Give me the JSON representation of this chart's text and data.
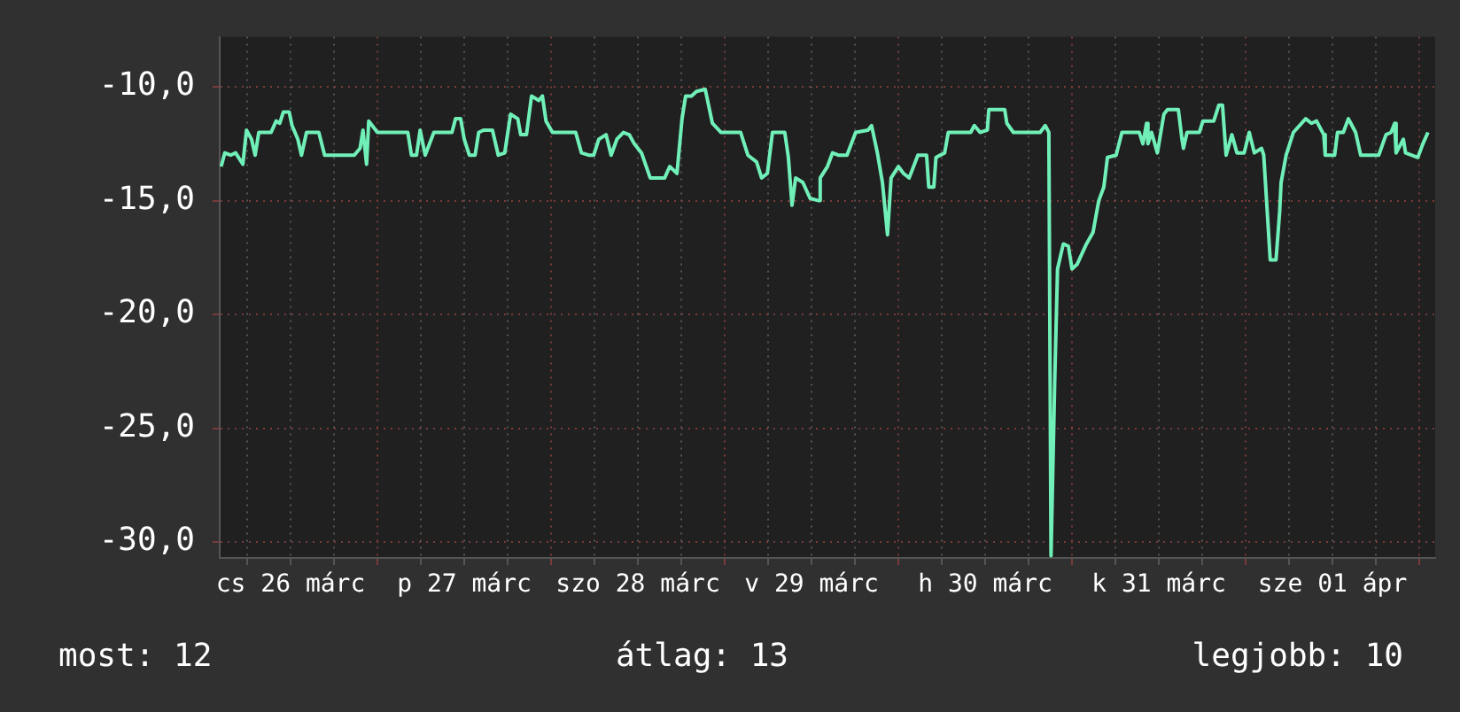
{
  "chart_data": {
    "type": "line",
    "x": [
      "--03-26T02:24",
      "--03-26T02:54",
      "--03-26T03:42",
      "--03-26T04:24",
      "--03-26T05:24",
      "--03-26T05:54",
      "--03-26T06:36",
      "--03-26T07:06",
      "--03-26T07:36",
      "--03-26T09:18",
      "--03-26T10:00",
      "--03-26T10:30",
      "--03-26T11:00",
      "--03-26T11:48",
      "--03-26T12:12",
      "--03-26T13:00",
      "--03-26T13:30",
      "--03-26T14:12",
      "--03-26T15:54",
      "--03-26T16:42",
      "--03-26T20:48",
      "--03-26T21:36",
      "--03-26T22:00",
      "--03-26T22:30",
      "--03-26T22:48",
      "--03-27T00:00",
      "--03-27T04:12",
      "--03-27T04:42",
      "--03-27T05:24",
      "--03-27T05:54",
      "--03-27T06:36",
      "--03-27T07:48",
      "--03-27T10:18",
      "--03-27T10:48",
      "--03-27T11:30",
      "--03-27T12:00",
      "--03-27T12:42",
      "--03-27T13:30",
      "--03-27T14:00",
      "--03-27T14:42",
      "--03-27T15:54",
      "--03-27T16:42",
      "--03-27T17:36",
      "--03-27T18:24",
      "--03-27T19:24",
      "--03-27T19:48",
      "--03-27T20:36",
      "--03-27T21:18",
      "--03-27T22:18",
      "--03-27T22:48",
      "--03-27T23:18",
      "--03-28T00:12",
      "--03-28T03:24",
      "--03-28T04:12",
      "--03-28T05:12",
      "--03-28T05:54",
      "--03-28T06:36",
      "--03-28T07:36",
      "--03-28T08:18",
      "--03-28T09:06",
      "--03-28T10:00",
      "--03-28T10:48",
      "--03-28T11:30",
      "--03-28T12:30",
      "--03-28T13:42",
      "--03-28T15:42",
      "--03-28T16:24",
      "--03-28T17:24",
      "--03-28T18:06",
      "--03-28T18:36",
      "--03-28T19:24",
      "--03-28T20:06",
      "--03-28T21:18",
      "--03-28T22:18",
      "--03-28T23:30",
      "--03-29T02:12",
      "--03-29T03:12",
      "--03-29T04:24",
      "--03-29T05:06",
      "--03-29T05:54",
      "--03-29T06:36",
      "--03-29T08:18",
      "--03-29T08:48",
      "--03-29T09:18",
      "--03-29T09:48",
      "--03-29T10:48",
      "--03-29T11:48",
      "--03-29T13:00",
      "--03-29T13:12",
      "--03-29T14:12",
      "--03-29T14:54",
      "--03-29T15:42",
      "--03-29T16:54",
      "--03-29T18:06",
      "--03-29T19:48",
      "--03-29T20:18",
      "--03-29T21:06",
      "--03-29T21:48",
      "--03-29T22:30",
      "--03-29T23:00",
      "--03-30T00:00",
      "--03-30T00:42",
      "--03-30T01:30",
      "--03-30T02:42",
      "--03-30T03:54",
      "--03-30T04:12",
      "--03-30T04:54",
      "--03-30T05:12",
      "--03-30T06:24",
      "--03-30T06:54",
      "--03-30T10:00",
      "--03-30T10:30",
      "--03-30T11:18",
      "--03-30T12:18",
      "--03-30T12:30",
      "--03-30T14:42",
      "--03-30T15:00",
      "--03-30T15:54",
      "--03-30T19:36",
      "--03-30T20:18",
      "--03-30T20:48",
      "--03-30T21:06",
      "--03-30T21:36",
      "--03-30T22:00",
      "--03-30T22:48",
      "--03-30T23:30",
      "--03-31T00:00",
      "--03-31T00:42",
      "--03-31T02:00",
      "--03-31T02:54",
      "--03-31T03:42",
      "--03-31T04:24",
      "--03-31T04:54",
      "--03-31T06:06",
      "--03-31T06:54",
      "--03-31T09:18",
      "--03-31T09:48",
      "--03-31T10:18",
      "--03-31T10:30",
      "--03-31T11:00",
      "--03-31T11:48",
      "--03-31T12:42",
      "--03-31T13:12",
      "--03-31T14:42",
      "--03-31T15:12",
      "--03-31T15:24",
      "--03-31T15:54",
      "--03-31T17:36",
      "--03-31T18:06",
      "--03-31T19:36",
      "--03-31T20:18",
      "--03-31T20:48",
      "--03-31T21:18",
      "--03-31T22:06",
      "--03-31T22:48",
      "--03-31T23:48",
      "--04-01T00:30",
      "--04-01T01:12",
      "--04-01T02:12",
      "--04-01T02:30",
      "--04-01T03:24",
      "--04-01T04:12",
      "--04-01T04:42",
      "--04-01T04:54",
      "--04-01T05:36",
      "--04-01T06:36",
      "--04-01T08:18",
      "--04-01T09:06",
      "--04-01T09:48",
      "--04-01T10:48",
      "--04-01T11:00",
      "--04-01T12:18",
      "--04-01T12:42",
      "--04-01T13:30",
      "--04-01T14:12",
      "--04-01T15:12",
      "--04-01T15:54",
      "--04-01T18:24",
      "--04-01T19:24",
      "--04-01T20:06",
      "--04-01T20:36",
      "--04-01T20:48",
      "--04-01T21:48",
      "--04-01T22:06",
      "--04-01T23:48",
      "--04-02T00:30",
      "--04-02T01:12"
    ],
    "series": [
      {
        "color": "#70f0b8",
        "values": [
          -13.5,
          -12.9,
          -13.0,
          -12.9,
          -13.4,
          -11.9,
          -12.3,
          -13.0,
          -12.0,
          -12.0,
          -11.5,
          -11.6,
          -11.1,
          -11.1,
          -11.7,
          -12.3,
          -13.0,
          -12.0,
          -12.0,
          -13.0,
          -13.0,
          -12.7,
          -11.9,
          -13.4,
          -11.5,
          -12.0,
          -12.0,
          -13.0,
          -13.0,
          -11.9,
          -13.0,
          -12.0,
          -12.0,
          -11.4,
          -11.4,
          -12.3,
          -13.0,
          -13.0,
          -12.0,
          -11.9,
          -11.9,
          -13.0,
          -12.9,
          -11.2,
          -11.4,
          -12.1,
          -12.1,
          -10.4,
          -10.6,
          -10.4,
          -11.5,
          -12.0,
          -12.0,
          -12.9,
          -13.0,
          -13.0,
          -12.3,
          -12.1,
          -13.0,
          -12.3,
          -12.0,
          -12.1,
          -12.5,
          -12.9,
          -14.0,
          -14.0,
          -13.5,
          -13.8,
          -11.4,
          -10.4,
          -10.4,
          -10.2,
          -10.1,
          -11.6,
          -12.0,
          -12.0,
          -13.0,
          -13.3,
          -14.0,
          -13.8,
          -12.0,
          -12.0,
          -13.1,
          -15.2,
          -14.0,
          -14.2,
          -14.9,
          -15.0,
          -14.0,
          -13.5,
          -12.9,
          -13.0,
          -13.0,
          -12.0,
          -11.9,
          -11.7,
          -12.9,
          -14.2,
          -16.5,
          -14.0,
          -13.5,
          -13.8,
          -14.0,
          -13.0,
          -13.0,
          -14.4,
          -14.4,
          -13.1,
          -12.9,
          -12.0,
          -12.0,
          -11.7,
          -12.0,
          -11.9,
          -11.0,
          -11.0,
          -11.6,
          -12.0,
          -12.0,
          -11.7,
          -12.0,
          -30.6,
          -23.1,
          -18.0,
          -16.9,
          -17.0,
          -18.0,
          -17.8,
          -16.9,
          -16.4,
          -15.0,
          -14.4,
          -13.1,
          -13.0,
          -12.0,
          -12.0,
          -12.5,
          -11.6,
          -12.5,
          -12.0,
          -12.9,
          -11.2,
          -11.0,
          -11.0,
          -12.3,
          -12.7,
          -12.0,
          -12.0,
          -11.5,
          -11.5,
          -10.8,
          -10.8,
          -13.0,
          -12.1,
          -12.9,
          -12.9,
          -12.0,
          -12.9,
          -12.7,
          -13.0,
          -17.6,
          -17.6,
          -15.5,
          -14.2,
          -13.0,
          -12.0,
          -11.4,
          -11.6,
          -11.5,
          -12.1,
          -13.0,
          -13.0,
          -12.0,
          -12.0,
          -11.4,
          -12.0,
          -13.0,
          -13.0,
          -12.1,
          -12.0,
          -11.6,
          -12.9,
          -12.3,
          -12.9,
          -13.1,
          -12.5,
          -12.0
        ]
      }
    ],
    "xlim": [
      "--03-26T02:12",
      "--04-02T02:12"
    ],
    "xticks": [
      {
        "value": "--03-26T06:00",
        "label": null
      },
      {
        "value": "--03-26T12:00",
        "label": "cs 26 márc"
      },
      {
        "value": "--03-26T18:00",
        "label": null
      },
      {
        "value": "--03-27T00:00",
        "label": null
      },
      {
        "value": "--03-27T06:00",
        "label": null
      },
      {
        "value": "--03-27T12:00",
        "label": "p 27 márc"
      },
      {
        "value": "--03-27T18:00",
        "label": null
      },
      {
        "value": "--03-28T00:00",
        "label": null
      },
      {
        "value": "--03-28T06:00",
        "label": null
      },
      {
        "value": "--03-28T12:00",
        "label": "szo 28 márc"
      },
      {
        "value": "--03-28T18:00",
        "label": null
      },
      {
        "value": "--03-29T00:00",
        "label": null
      },
      {
        "value": "--03-29T06:00",
        "label": null
      },
      {
        "value": "--03-29T12:00",
        "label": "v 29 márc"
      },
      {
        "value": "--03-29T18:00",
        "label": null
      },
      {
        "value": "--03-30T00:00",
        "label": null
      },
      {
        "value": "--03-30T06:00",
        "label": null
      },
      {
        "value": "--03-30T12:00",
        "label": "h 30 márc"
      },
      {
        "value": "--03-30T18:00",
        "label": null
      },
      {
        "value": "--03-31T00:00",
        "label": null
      },
      {
        "value": "--03-31T06:00",
        "label": null
      },
      {
        "value": "--03-31T12:00",
        "label": "k 31 márc"
      },
      {
        "value": "--03-31T18:00",
        "label": null
      },
      {
        "value": "--04-01T00:00",
        "label": null
      },
      {
        "value": "--04-01T06:00",
        "label": null
      },
      {
        "value": "--04-01T12:00",
        "label": "sze 01 ápr"
      },
      {
        "value": "--04-01T18:00",
        "label": null
      },
      {
        "value": "--04-02T00:00",
        "label": null
      }
    ],
    "ylim": [
      -30.7,
      -7.8
    ],
    "yticks": [
      {
        "value": -30,
        "label": "-30,0"
      },
      {
        "value": -25,
        "label": "-25,0"
      },
      {
        "value": -20,
        "label": "-20,0"
      },
      {
        "value": -15,
        "label": "-15,0"
      },
      {
        "value": -10,
        "label": "-10,0"
      }
    ],
    "grid": true,
    "legend": false,
    "marker": "none",
    "line_style": "solid",
    "annotations": [
      "most: 12",
      "átlag: 13",
      "legjobb: 10"
    ]
  }
}
